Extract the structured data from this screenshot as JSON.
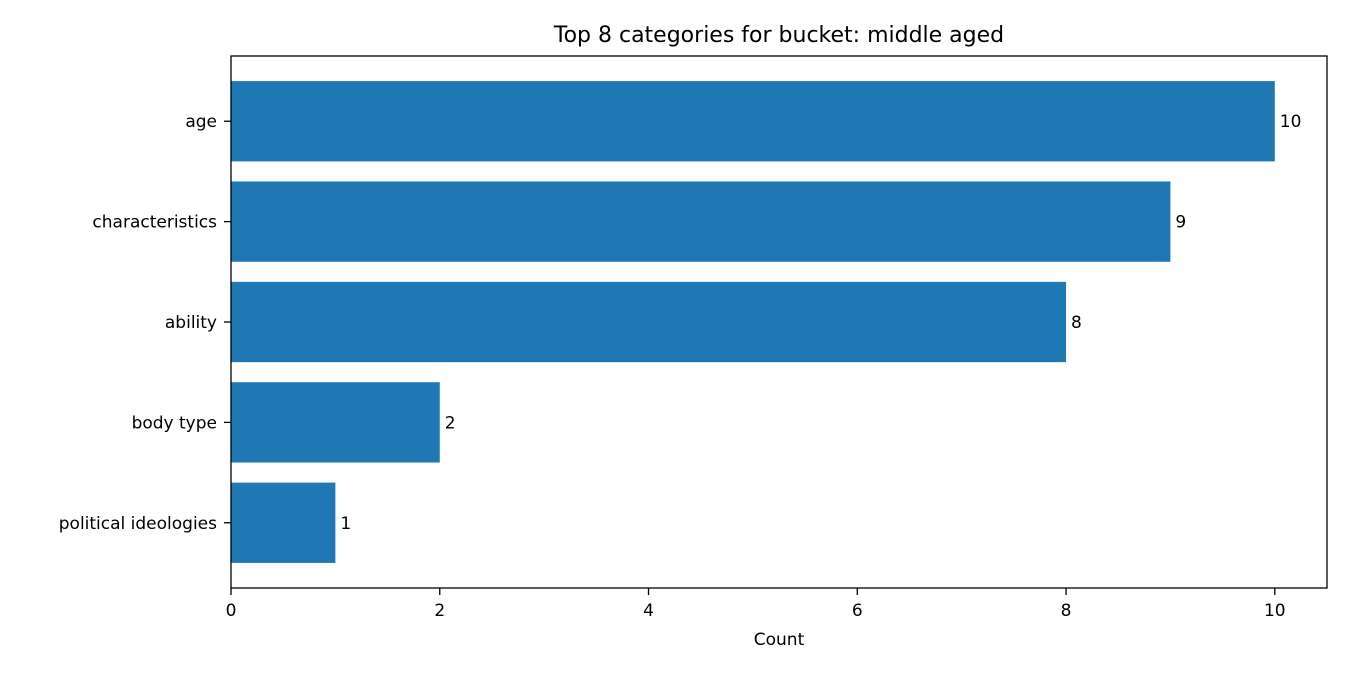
{
  "chart_data": {
    "type": "bar",
    "orientation": "horizontal",
    "title": "Top 8 categories for bucket: middle aged",
    "xlabel": "Count",
    "ylabel": "",
    "categories": [
      "age",
      "characteristics",
      "ability",
      "body type",
      "political ideologies"
    ],
    "values": [
      10,
      9,
      8,
      2,
      1
    ],
    "xlim": [
      0,
      10.5
    ],
    "xticks": [
      0,
      2,
      4,
      6,
      8,
      10
    ],
    "grid": false,
    "bar_color": "#1f77b4",
    "data_labels": true
  }
}
